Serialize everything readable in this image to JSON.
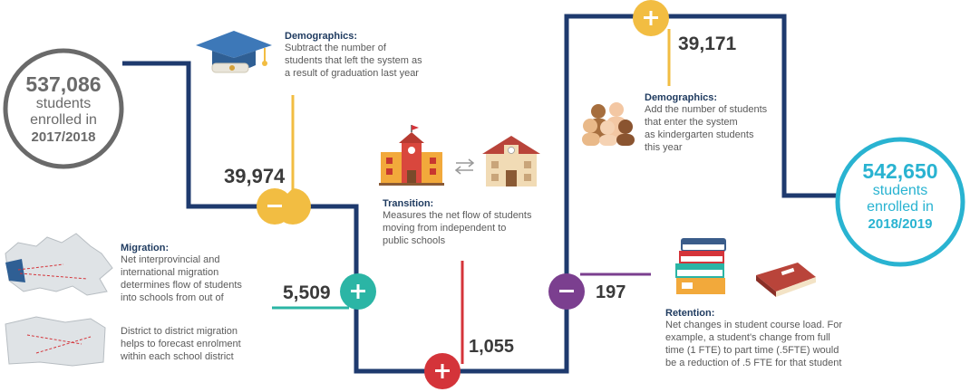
{
  "start": {
    "value": "537,086",
    "line1": "students",
    "line2": "enrolled in",
    "year": "2017/2018"
  },
  "end": {
    "value": "542,650",
    "line1": "students",
    "line2": "enrolled in",
    "year": "2018/2019"
  },
  "graduation": {
    "value": "39,974",
    "sign": "−",
    "title": "Demographics:",
    "body": [
      "Subtract the number of",
      "students that left the system as",
      "a result of graduation last year"
    ]
  },
  "migration": {
    "value": "5,509",
    "sign": "+",
    "title": "Migration:",
    "body": [
      "Net interprovincial and",
      "international migration",
      "determines flow of students",
      "into schools from out of"
    ],
    "body2": [
      "District to district migration",
      "helps to forecast enrolment",
      "within each school district"
    ]
  },
  "transition": {
    "value": "1,055",
    "sign": "+",
    "title": "Transition:",
    "body": [
      "Measures the net flow of students",
      "moving from independent to",
      "public schools"
    ]
  },
  "retention": {
    "value": "197",
    "sign": "−",
    "title": "Retention:",
    "body": [
      "Net changes in student course load. For",
      "example, a student's change from full",
      "time (1 FTE) to part time (.5FTE) would",
      "be a reduction of .5 FTE for that student"
    ]
  },
  "kindergarten": {
    "value": "39,171",
    "sign": "+",
    "title": "Demographics:",
    "body": [
      "Add the number of students",
      "that enter the system",
      "as kindergarten students",
      "this year"
    ]
  },
  "colors": {
    "navy": "#1e3a6e",
    "yellow": "#f2bd42",
    "teal": "#2bb5a5",
    "red": "#d4343a",
    "purple": "#7b3f8f",
    "cyan": "#29b3d1",
    "gray": "#6a6a6a"
  },
  "icons": [
    "graduation-cap-icon",
    "school-building-icon",
    "swap-arrows-icon",
    "house-icon",
    "people-group-icon",
    "book-stack-icon",
    "book-icon",
    "canada-map-icon",
    "province-map-icon"
  ]
}
